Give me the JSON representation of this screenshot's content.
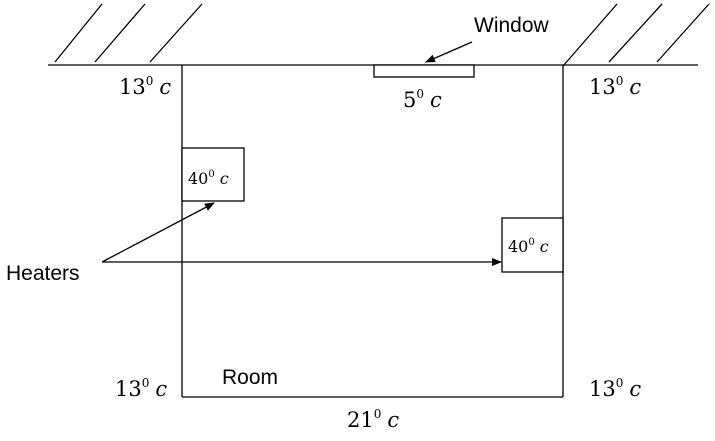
{
  "labels": {
    "window": "Window",
    "heaters": "Heaters",
    "room": "Room"
  },
  "temperatures": {
    "top_left_corner": {
      "value": "13",
      "deg": "0",
      "unit": "c"
    },
    "top_right_corner": {
      "value": "13",
      "deg": "0",
      "unit": "c"
    },
    "window": {
      "value": "5",
      "deg": "0",
      "unit": "c"
    },
    "heater_left": {
      "value": "40",
      "deg": "0",
      "unit": "c"
    },
    "heater_right": {
      "value": "40",
      "deg": "0",
      "unit": "c"
    },
    "bottom_left_corner": {
      "value": "13",
      "deg": "0",
      "unit": "c"
    },
    "bottom_right_corner": {
      "value": "13",
      "deg": "0",
      "unit": "c"
    },
    "floor": {
      "value": "21",
      "deg": "0",
      "unit": "c"
    }
  }
}
